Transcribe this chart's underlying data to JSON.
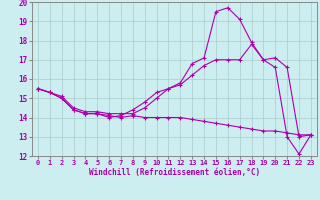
{
  "xlabel": "Windchill (Refroidissement éolien,°C)",
  "background_color": "#cceef0",
  "line_color": "#aa00aa",
  "grid_color": "#aacccc",
  "xlim": [
    -0.5,
    23.5
  ],
  "ylim": [
    12,
    20
  ],
  "xticks": [
    0,
    1,
    2,
    3,
    4,
    5,
    6,
    7,
    8,
    9,
    10,
    11,
    12,
    13,
    14,
    15,
    16,
    17,
    18,
    19,
    20,
    21,
    22,
    23
  ],
  "yticks": [
    12,
    13,
    14,
    15,
    16,
    17,
    18,
    19,
    20
  ],
  "curve1_x": [
    0,
    1,
    2,
    3,
    4,
    5,
    6,
    7,
    8,
    9,
    10,
    11,
    12,
    13,
    14,
    15,
    16,
    17,
    18,
    19,
    20,
    21,
    22,
    23
  ],
  "curve1_y": [
    15.5,
    15.3,
    15.0,
    14.4,
    14.2,
    14.2,
    14.0,
    14.1,
    14.4,
    14.8,
    15.3,
    15.5,
    15.8,
    16.8,
    17.1,
    19.5,
    19.7,
    19.1,
    17.9,
    17.0,
    16.6,
    13.0,
    12.1,
    13.1
  ],
  "curve2_x": [
    0,
    1,
    2,
    3,
    4,
    5,
    6,
    7,
    8,
    9,
    10,
    11,
    12,
    13,
    14,
    15,
    16,
    17,
    18,
    19,
    20,
    21,
    22,
    23
  ],
  "curve2_y": [
    15.5,
    15.3,
    15.1,
    14.5,
    14.3,
    14.3,
    14.2,
    14.2,
    14.2,
    14.5,
    15.0,
    15.5,
    15.7,
    16.2,
    16.7,
    17.0,
    17.0,
    17.0,
    17.8,
    17.0,
    17.1,
    16.6,
    13.0,
    13.1
  ],
  "curve3_x": [
    0,
    1,
    2,
    3,
    4,
    5,
    6,
    7,
    8,
    9,
    10,
    11,
    12,
    13,
    14,
    15,
    16,
    17,
    18,
    19,
    20,
    21,
    22,
    23
  ],
  "curve3_y": [
    15.5,
    15.3,
    15.0,
    14.4,
    14.2,
    14.2,
    14.1,
    14.0,
    14.1,
    14.0,
    14.0,
    14.0,
    14.0,
    13.9,
    13.8,
    13.7,
    13.6,
    13.5,
    13.4,
    13.3,
    13.3,
    13.2,
    13.1,
    13.1
  ]
}
